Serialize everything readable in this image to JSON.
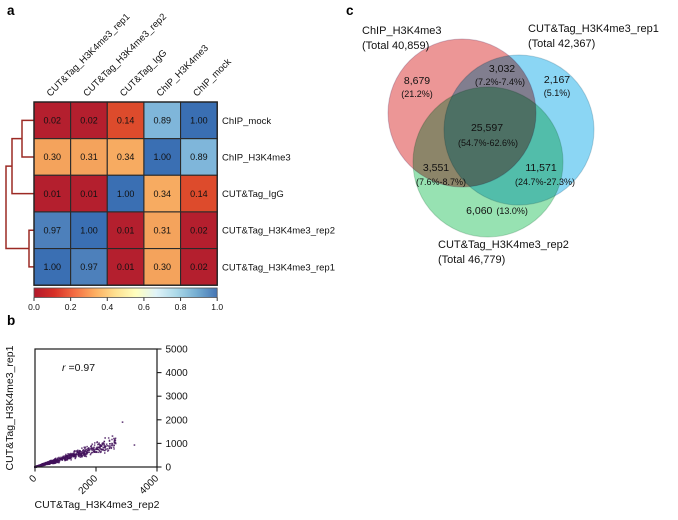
{
  "panel_labels": {
    "a": "a",
    "b": "b",
    "c": "c"
  },
  "chart_data": [
    {
      "type": "heatmap",
      "panel": "a",
      "title": "Pairwise correlation heatmap with row dendrogram",
      "columns": [
        "CUT&Tag_H3K4me3_rep1",
        "CUT&Tag_H3K4me3_rep2",
        "CUT&Tag_IgG",
        "ChIP_H3K4me3",
        "ChIP_mock"
      ],
      "rows": [
        "ChIP_mock",
        "ChIP_H3K4me3",
        "CUT&Tag_IgG",
        "CUT&Tag_H3K4me3_rep2",
        "CUT&Tag_H3K4me3_rep1"
      ],
      "values": [
        [
          0.02,
          0.02,
          0.14,
          0.89,
          1.0
        ],
        [
          0.3,
          0.31,
          0.34,
          1.0,
          0.89
        ],
        [
          0.01,
          0.01,
          1.0,
          0.34,
          0.14
        ],
        [
          0.97,
          1.0,
          0.01,
          0.31,
          0.02
        ],
        [
          1.0,
          0.97,
          0.01,
          0.3,
          0.02
        ]
      ],
      "cell_colors": {
        "0.01": "#b41f2e",
        "0.02": "#b41f2e",
        "0.14": "#dd4b2c",
        "0.30": "#f4a35c",
        "0.31": "#f4a35c",
        "0.34": "#f7ab61",
        "0.89": "#7fb6da",
        "0.97": "#4d80bb",
        "1.00": "#3a6fb3"
      },
      "dendrogram": {
        "color": "#9c2a24",
        "structure": "(((ChIP_mock,ChIP_H3K4me3),CUT&Tag_IgG),(CUT&Tag_H3K4me3_rep2,CUT&Tag_H3K4me3_rep1))"
      },
      "colorbar": {
        "min": 0,
        "max": 1,
        "ticks": [
          "0.0",
          "0.2",
          "0.4",
          "0.6",
          "0.8",
          "1.0"
        ],
        "gradient": [
          "#b2182b",
          "#d73027",
          "#f46d43",
          "#fdae61",
          "#fee090",
          "#ffffbf",
          "#e0f3f8",
          "#abd9e9",
          "#74add1",
          "#4575b4"
        ]
      }
    },
    {
      "type": "scatter",
      "panel": "b",
      "xlabel": "CUT&Tag_H3K4me3_rep2",
      "ylabel": "CUT&Tag_H3K4me3_rep1",
      "xlim": [
        0,
        4000
      ],
      "ylim": [
        0,
        5000
      ],
      "x_ticks": [
        "0",
        "2000",
        "4000"
      ],
      "y_ticks": [
        "0",
        "1000",
        "2000",
        "3000",
        "4000",
        "5000"
      ],
      "annotation": {
        "symbol": "r",
        "value": "=0.97"
      },
      "correlation_r": 0.97,
      "point_color": "#41105a",
      "cluster": {
        "n_points": 1100,
        "x_max": 2650,
        "slope_range": [
          0.32,
          0.46
        ]
      },
      "outlier_points": [
        [
          2870,
          1900
        ],
        [
          3260,
          930
        ],
        [
          2300,
          1230
        ],
        [
          2540,
          1310
        ]
      ]
    },
    {
      "type": "venn",
      "panel": "c",
      "sets": [
        {
          "name": "ChIP_H3K4me3",
          "total_label": "(Total 40,859)",
          "total": 40859,
          "color": "#e57373"
        },
        {
          "name": "CUT&Tag_H3K4me3_rep1",
          "total_label": "(Total 42,367)",
          "total": 42367,
          "color": "#64c8f0"
        },
        {
          "name": "CUT&Tag_H3K4me3_rep2",
          "total_label": "(Total 46,779)",
          "total": 46779,
          "color": "#74d898"
        }
      ],
      "regions": [
        {
          "id": "chip-only",
          "value": "8,679",
          "pct": "(21.2%)"
        },
        {
          "id": "chip-and-rep1",
          "value": "3,032",
          "pct": "(7.2%-7.4%)"
        },
        {
          "id": "rep1-only",
          "value": "2,167",
          "pct": "(5.1%)"
        },
        {
          "id": "all-three",
          "value": "25,597",
          "pct": "(54.7%-62.6%)"
        },
        {
          "id": "chip-and-rep2",
          "value": "3,551",
          "pct": "(7.6%-8.7%)"
        },
        {
          "id": "rep1-and-rep2",
          "value": "11,571",
          "pct": "(24.7%-27.3%)"
        },
        {
          "id": "rep2-only",
          "value": "6,060",
          "pct": "(13.0%)"
        }
      ]
    }
  ]
}
